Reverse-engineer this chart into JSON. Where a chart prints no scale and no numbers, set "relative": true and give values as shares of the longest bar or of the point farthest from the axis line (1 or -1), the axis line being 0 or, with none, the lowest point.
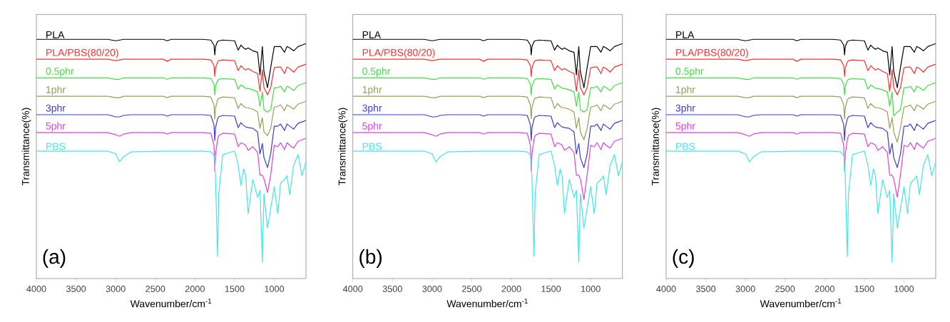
{
  "chart_data": [
    {
      "type": "line",
      "relative": true,
      "xlabel": "Wavenumber/cm$^{-1}$",
      "ylabel": "Transmittance(%)",
      "xlim": [
        4000,
        600
      ],
      "xticks": [
        4000,
        3500,
        3000,
        2500,
        2000,
        1500,
        1000
      ],
      "annotations": [
        "(a)"
      ],
      "x": [
        4000,
        3600,
        3100,
        3000,
        2950,
        2900,
        2800,
        2400,
        2350,
        2300,
        1900,
        1800,
        1760,
        1750,
        1740,
        1715,
        1700,
        1650,
        1500,
        1455,
        1420,
        1385,
        1360,
        1330,
        1270,
        1210,
        1180,
        1150,
        1130,
        1085,
        1045,
        1000,
        955,
        920,
        870,
        840,
        805,
        755,
        700,
        650,
        600
      ],
      "series": [
        {
          "name": "PLA",
          "color": "#000000",
          "values": [
            1.0,
            1.0,
            1.0,
            0.994,
            0.997,
            1.0,
            1.0,
            1.0,
            0.994,
            1.0,
            1.0,
            0.997,
            0.976,
            0.935,
            0.97,
            0.991,
            0.994,
            0.997,
            0.994,
            0.955,
            0.976,
            0.964,
            0.958,
            0.964,
            0.952,
            0.946,
            0.851,
            0.97,
            0.866,
            0.798,
            0.881,
            0.97,
            0.97,
            0.97,
            0.946,
            0.97,
            0.964,
            0.952,
            0.97,
            0.976,
            0.982
          ]
        },
        {
          "name": "PLA/PBS(80/20)",
          "color": "#ff3030",
          "values": [
            0.917,
            0.917,
            0.917,
            0.911,
            0.914,
            0.917,
            0.917,
            0.917,
            0.908,
            0.917,
            0.917,
            0.914,
            0.89,
            0.845,
            0.881,
            0.905,
            0.911,
            0.914,
            0.911,
            0.869,
            0.89,
            0.878,
            0.872,
            0.878,
            0.866,
            0.857,
            0.783,
            0.872,
            0.798,
            0.768,
            0.798,
            0.881,
            0.884,
            0.884,
            0.857,
            0.884,
            0.878,
            0.863,
            0.884,
            0.89,
            0.896
          ]
        },
        {
          "name": "0.5phr",
          "color": "#40e040",
          "values": [
            0.839,
            0.839,
            0.839,
            0.833,
            0.833,
            0.839,
            0.839,
            0.839,
            0.833,
            0.839,
            0.839,
            0.836,
            0.813,
            0.768,
            0.804,
            0.827,
            0.833,
            0.836,
            0.833,
            0.792,
            0.81,
            0.801,
            0.795,
            0.795,
            0.789,
            0.78,
            0.72,
            0.78,
            0.705,
            0.696,
            0.705,
            0.798,
            0.798,
            0.804,
            0.78,
            0.804,
            0.798,
            0.786,
            0.807,
            0.813,
            0.818
          ]
        },
        {
          "name": "1phr",
          "color": "#9c9c5a",
          "values": [
            0.762,
            0.762,
            0.762,
            0.756,
            0.756,
            0.762,
            0.762,
            0.762,
            0.756,
            0.762,
            0.762,
            0.759,
            0.726,
            0.667,
            0.714,
            0.747,
            0.753,
            0.759,
            0.756,
            0.711,
            0.732,
            0.72,
            0.714,
            0.714,
            0.708,
            0.696,
            0.628,
            0.673,
            0.613,
            0.598,
            0.628,
            0.717,
            0.72,
            0.726,
            0.702,
            0.726,
            0.72,
            0.708,
            0.729,
            0.735,
            0.741
          ]
        },
        {
          "name": "3phr",
          "color": "#3c3cd0",
          "values": [
            0.685,
            0.685,
            0.685,
            0.676,
            0.676,
            0.682,
            0.685,
            0.685,
            0.679,
            0.685,
            0.685,
            0.682,
            0.643,
            0.577,
            0.631,
            0.667,
            0.676,
            0.682,
            0.679,
            0.631,
            0.652,
            0.64,
            0.634,
            0.631,
            0.628,
            0.613,
            0.521,
            0.565,
            0.506,
            0.464,
            0.521,
            0.637,
            0.637,
            0.646,
            0.619,
            0.646,
            0.637,
            0.625,
            0.649,
            0.655,
            0.661
          ]
        },
        {
          "name": "5phr",
          "color": "#e040e0",
          "values": [
            0.61,
            0.61,
            0.61,
            0.601,
            0.595,
            0.604,
            0.61,
            0.61,
            0.604,
            0.61,
            0.61,
            0.607,
            0.557,
            0.449,
            0.521,
            0.58,
            0.598,
            0.607,
            0.604,
            0.551,
            0.568,
            0.563,
            0.557,
            0.536,
            0.551,
            0.527,
            0.432,
            0.432,
            0.417,
            0.36,
            0.432,
            0.557,
            0.551,
            0.568,
            0.539,
            0.568,
            0.557,
            0.545,
            0.574,
            0.58,
            0.586
          ]
        },
        {
          "name": "PBS",
          "color": "#40e8e8",
          "values": [
            0.533,
            0.533,
            0.533,
            0.521,
            0.488,
            0.509,
            0.53,
            0.533,
            0.533,
            0.533,
            0.533,
            0.53,
            0.515,
            0.488,
            0.414,
            0.092,
            0.354,
            0.518,
            0.533,
            0.473,
            0.39,
            0.458,
            0.429,
            0.271,
            0.414,
            0.339,
            0.369,
            0.068,
            0.354,
            0.211,
            0.292,
            0.384,
            0.271,
            0.399,
            0.414,
            0.429,
            0.351,
            0.473,
            0.518,
            0.429,
            0.488
          ]
        }
      ]
    },
    {
      "type": "line",
      "relative": true,
      "xlabel": "Wavenumber/cm$^{-1}$",
      "ylabel": "Transmittance(%)",
      "xlim": [
        4000,
        600
      ],
      "xticks": [
        4000,
        3500,
        3000,
        2500,
        2000,
        1500,
        1000
      ],
      "annotations": [
        "(b)"
      ],
      "x": [
        4000,
        3600,
        3100,
        3000,
        2950,
        2900,
        2800,
        2400,
        2350,
        2300,
        1900,
        1800,
        1760,
        1750,
        1740,
        1715,
        1700,
        1650,
        1500,
        1455,
        1420,
        1385,
        1360,
        1330,
        1270,
        1210,
        1180,
        1150,
        1130,
        1085,
        1045,
        1000,
        955,
        920,
        870,
        840,
        805,
        755,
        700,
        650,
        600
      ],
      "series": [
        {
          "name": "PLA",
          "color": "#000000",
          "values": [
            1.0,
            1.0,
            1.0,
            0.994,
            0.997,
            1.0,
            1.0,
            1.0,
            0.994,
            1.0,
            1.0,
            0.997,
            0.976,
            0.935,
            0.97,
            0.991,
            0.994,
            0.997,
            0.994,
            0.955,
            0.976,
            0.964,
            0.958,
            0.964,
            0.952,
            0.946,
            0.851,
            0.97,
            0.866,
            0.798,
            0.881,
            0.97,
            0.97,
            0.97,
            0.946,
            0.97,
            0.964,
            0.952,
            0.97,
            0.976,
            0.982
          ]
        },
        {
          "name": "PLA/PBS(80/20)",
          "color": "#ff3030",
          "values": [
            0.917,
            0.917,
            0.917,
            0.911,
            0.914,
            0.917,
            0.917,
            0.917,
            0.908,
            0.917,
            0.917,
            0.914,
            0.89,
            0.845,
            0.881,
            0.905,
            0.911,
            0.914,
            0.911,
            0.869,
            0.89,
            0.878,
            0.872,
            0.878,
            0.866,
            0.857,
            0.783,
            0.872,
            0.798,
            0.768,
            0.798,
            0.881,
            0.884,
            0.884,
            0.857,
            0.884,
            0.878,
            0.863,
            0.884,
            0.89,
            0.896
          ]
        },
        {
          "name": "0.5phr",
          "color": "#40e040",
          "values": [
            0.839,
            0.839,
            0.839,
            0.833,
            0.833,
            0.839,
            0.839,
            0.839,
            0.833,
            0.839,
            0.839,
            0.836,
            0.813,
            0.768,
            0.804,
            0.827,
            0.833,
            0.836,
            0.833,
            0.792,
            0.81,
            0.801,
            0.795,
            0.795,
            0.789,
            0.78,
            0.72,
            0.78,
            0.705,
            0.696,
            0.705,
            0.798,
            0.798,
            0.804,
            0.78,
            0.804,
            0.798,
            0.786,
            0.807,
            0.813,
            0.818
          ]
        },
        {
          "name": "1phr",
          "color": "#9c9c5a",
          "values": [
            0.762,
            0.762,
            0.762,
            0.756,
            0.756,
            0.762,
            0.762,
            0.762,
            0.756,
            0.762,
            0.762,
            0.759,
            0.726,
            0.667,
            0.714,
            0.747,
            0.753,
            0.759,
            0.756,
            0.711,
            0.732,
            0.72,
            0.714,
            0.714,
            0.708,
            0.696,
            0.628,
            0.673,
            0.613,
            0.58,
            0.628,
            0.717,
            0.72,
            0.726,
            0.702,
            0.726,
            0.72,
            0.708,
            0.729,
            0.735,
            0.741
          ]
        },
        {
          "name": "3phr",
          "color": "#3c3cd0",
          "values": [
            0.685,
            0.685,
            0.685,
            0.676,
            0.676,
            0.682,
            0.685,
            0.685,
            0.679,
            0.685,
            0.685,
            0.682,
            0.643,
            0.577,
            0.631,
            0.667,
            0.676,
            0.682,
            0.679,
            0.631,
            0.652,
            0.64,
            0.634,
            0.631,
            0.628,
            0.613,
            0.521,
            0.565,
            0.506,
            0.464,
            0.521,
            0.637,
            0.637,
            0.646,
            0.619,
            0.646,
            0.637,
            0.625,
            0.649,
            0.655,
            0.661
          ]
        },
        {
          "name": "5phr",
          "color": "#e040e0",
          "values": [
            0.61,
            0.61,
            0.61,
            0.601,
            0.595,
            0.604,
            0.61,
            0.61,
            0.604,
            0.61,
            0.61,
            0.607,
            0.557,
            0.449,
            0.521,
            0.58,
            0.598,
            0.607,
            0.604,
            0.551,
            0.568,
            0.563,
            0.557,
            0.536,
            0.551,
            0.527,
            0.432,
            0.432,
            0.417,
            0.33,
            0.432,
            0.557,
            0.551,
            0.568,
            0.539,
            0.568,
            0.557,
            0.545,
            0.574,
            0.58,
            0.586
          ]
        },
        {
          "name": "PBS",
          "color": "#40e8e8",
          "values": [
            0.533,
            0.533,
            0.533,
            0.521,
            0.488,
            0.509,
            0.53,
            0.533,
            0.533,
            0.533,
            0.533,
            0.53,
            0.515,
            0.488,
            0.414,
            0.092,
            0.354,
            0.518,
            0.533,
            0.473,
            0.39,
            0.458,
            0.429,
            0.271,
            0.414,
            0.339,
            0.369,
            0.068,
            0.354,
            0.211,
            0.292,
            0.384,
            0.271,
            0.399,
            0.414,
            0.429,
            0.351,
            0.473,
            0.518,
            0.429,
            0.488
          ]
        }
      ]
    },
    {
      "type": "line",
      "relative": true,
      "xlabel": "Wavenumber/cm$^{-1}$",
      "ylabel": "Transmittance(%)",
      "xlim": [
        4000,
        600
      ],
      "xticks": [
        4000,
        3500,
        3000,
        2500,
        2000,
        1500,
        1000
      ],
      "annotations": [
        "(c)"
      ],
      "x": [
        4000,
        3600,
        3100,
        3000,
        2950,
        2900,
        2800,
        2400,
        2350,
        2300,
        1900,
        1800,
        1760,
        1750,
        1740,
        1715,
        1700,
        1650,
        1500,
        1455,
        1420,
        1385,
        1360,
        1330,
        1270,
        1210,
        1180,
        1150,
        1130,
        1085,
        1045,
        1000,
        955,
        920,
        870,
        840,
        805,
        755,
        700,
        650,
        600
      ],
      "series": [
        {
          "name": "PLA",
          "color": "#000000",
          "values": [
            1.0,
            1.0,
            1.0,
            0.994,
            0.997,
            1.0,
            1.0,
            1.0,
            0.994,
            1.0,
            1.0,
            0.997,
            0.976,
            0.935,
            0.97,
            0.991,
            0.994,
            0.997,
            0.994,
            0.955,
            0.976,
            0.964,
            0.958,
            0.964,
            0.952,
            0.946,
            0.851,
            0.97,
            0.866,
            0.798,
            0.881,
            0.97,
            0.97,
            0.97,
            0.946,
            0.97,
            0.964,
            0.952,
            0.97,
            0.976,
            0.982
          ]
        },
        {
          "name": "PLA/PBS(80/20)",
          "color": "#ff3030",
          "values": [
            0.917,
            0.917,
            0.917,
            0.911,
            0.914,
            0.917,
            0.917,
            0.917,
            0.908,
            0.917,
            0.917,
            0.914,
            0.89,
            0.845,
            0.881,
            0.905,
            0.911,
            0.914,
            0.911,
            0.869,
            0.89,
            0.878,
            0.872,
            0.878,
            0.866,
            0.857,
            0.783,
            0.872,
            0.798,
            0.768,
            0.798,
            0.881,
            0.884,
            0.884,
            0.857,
            0.884,
            0.878,
            0.863,
            0.884,
            0.89,
            0.896
          ]
        },
        {
          "name": "0.5phr",
          "color": "#40e040",
          "values": [
            0.839,
            0.839,
            0.839,
            0.833,
            0.833,
            0.839,
            0.839,
            0.839,
            0.833,
            0.839,
            0.839,
            0.836,
            0.813,
            0.768,
            0.804,
            0.827,
            0.833,
            0.836,
            0.833,
            0.792,
            0.81,
            0.801,
            0.795,
            0.795,
            0.789,
            0.78,
            0.72,
            0.78,
            0.68,
            0.696,
            0.705,
            0.798,
            0.798,
            0.804,
            0.78,
            0.804,
            0.798,
            0.786,
            0.807,
            0.813,
            0.818
          ]
        },
        {
          "name": "1phr",
          "color": "#9c9c5a",
          "values": [
            0.762,
            0.762,
            0.762,
            0.756,
            0.756,
            0.762,
            0.762,
            0.762,
            0.756,
            0.762,
            0.762,
            0.759,
            0.726,
            0.667,
            0.714,
            0.747,
            0.753,
            0.759,
            0.756,
            0.711,
            0.732,
            0.72,
            0.714,
            0.714,
            0.708,
            0.696,
            0.628,
            0.673,
            0.613,
            0.57,
            0.628,
            0.717,
            0.72,
            0.726,
            0.702,
            0.726,
            0.72,
            0.708,
            0.729,
            0.735,
            0.741
          ]
        },
        {
          "name": "3phr",
          "color": "#3c3cd0",
          "values": [
            0.685,
            0.685,
            0.685,
            0.676,
            0.676,
            0.682,
            0.685,
            0.685,
            0.679,
            0.685,
            0.685,
            0.682,
            0.643,
            0.577,
            0.631,
            0.667,
            0.676,
            0.682,
            0.679,
            0.631,
            0.652,
            0.64,
            0.634,
            0.631,
            0.628,
            0.613,
            0.521,
            0.565,
            0.506,
            0.464,
            0.521,
            0.637,
            0.637,
            0.646,
            0.619,
            0.646,
            0.637,
            0.625,
            0.649,
            0.655,
            0.661
          ]
        },
        {
          "name": "5phr",
          "color": "#e040e0",
          "values": [
            0.61,
            0.61,
            0.61,
            0.601,
            0.595,
            0.604,
            0.61,
            0.61,
            0.604,
            0.61,
            0.61,
            0.607,
            0.557,
            0.449,
            0.521,
            0.58,
            0.598,
            0.607,
            0.604,
            0.551,
            0.568,
            0.563,
            0.557,
            0.536,
            0.551,
            0.527,
            0.432,
            0.432,
            0.417,
            0.34,
            0.432,
            0.557,
            0.551,
            0.568,
            0.539,
            0.568,
            0.557,
            0.545,
            0.574,
            0.58,
            0.586
          ]
        },
        {
          "name": "PBS",
          "color": "#40e8e8",
          "values": [
            0.533,
            0.533,
            0.533,
            0.521,
            0.488,
            0.509,
            0.53,
            0.533,
            0.533,
            0.533,
            0.533,
            0.53,
            0.515,
            0.488,
            0.414,
            0.092,
            0.354,
            0.518,
            0.533,
            0.473,
            0.39,
            0.458,
            0.429,
            0.271,
            0.414,
            0.339,
            0.369,
            0.068,
            0.354,
            0.211,
            0.292,
            0.384,
            0.271,
            0.399,
            0.414,
            0.429,
            0.351,
            0.473,
            0.518,
            0.429,
            0.488
          ]
        }
      ]
    }
  ]
}
